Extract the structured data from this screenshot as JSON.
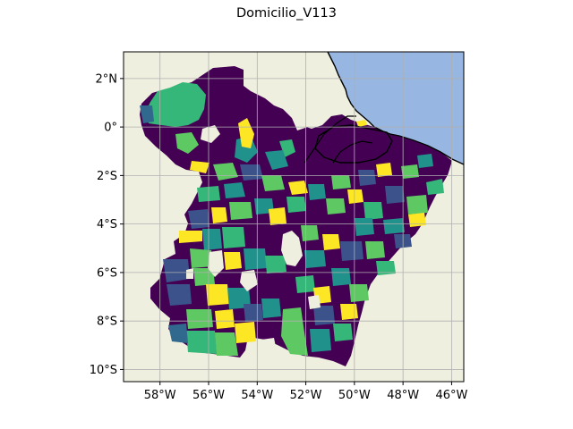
{
  "figure": {
    "title": "Domicilio_V113"
  },
  "map": {
    "projection": "PlateCarree",
    "extent": {
      "lon": [
        -59.5,
        -45.5
      ],
      "lat": [
        -10.5,
        3.1
      ]
    },
    "gridlines": true,
    "colormap": "viridis",
    "colors": {
      "land": "#efefdf",
      "ocean": "#97b6e1",
      "grid": "#b0b0b0",
      "coastline": "#000000",
      "viridis": [
        "#440154",
        "#3b528b",
        "#21918c",
        "#5ec962",
        "#fde725"
      ]
    },
    "x_ticks": [
      {
        "value": -58,
        "label": "58°W"
      },
      {
        "value": -56,
        "label": "56°W"
      },
      {
        "value": -54,
        "label": "54°W"
      },
      {
        "value": -52,
        "label": "52°W"
      },
      {
        "value": -50,
        "label": "50°W"
      },
      {
        "value": -48,
        "label": "48°W"
      },
      {
        "value": -46,
        "label": "46°W"
      }
    ],
    "y_ticks": [
      {
        "value": 2,
        "label": "2°N"
      },
      {
        "value": 0,
        "label": "0°"
      },
      {
        "value": -2,
        "label": "2°S"
      },
      {
        "value": -4,
        "label": "4°S"
      },
      {
        "value": -6,
        "label": "6°S"
      },
      {
        "value": -8,
        "label": "8°S"
      },
      {
        "value": -10,
        "label": "10°S"
      }
    ]
  }
}
